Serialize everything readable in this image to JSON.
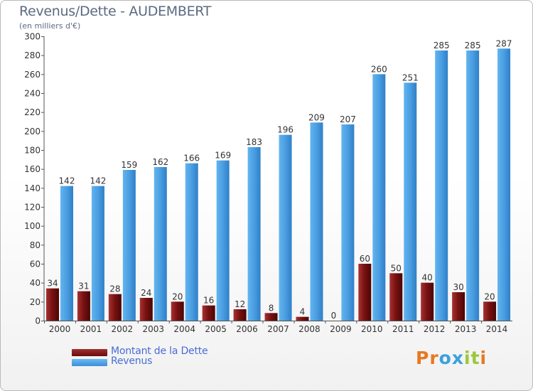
{
  "title": "Revenus/Dette - AUDEMBERT",
  "subtitle": "(en milliers d'€)",
  "logo": {
    "letters": [
      "P",
      "r",
      "o",
      "x",
      "i",
      "t",
      "i"
    ],
    "colors": [
      "#e8781e",
      "#e8781e",
      "#3aa0dc",
      "#3aa0dc",
      "#9cc73a",
      "#9cc73a",
      "#e8781e"
    ]
  },
  "legend": [
    {
      "label": "Montant de la Dette",
      "color": "#7a1212"
    },
    {
      "label": "Revenus",
      "color": "#4da0e0"
    }
  ],
  "chart_data": {
    "type": "bar",
    "title": "Revenus/Dette - AUDEMBERT",
    "subtitle": "(en milliers d'€)",
    "categories": [
      "2000",
      "2001",
      "2002",
      "2003",
      "2004",
      "2005",
      "2006",
      "2007",
      "2008",
      "2009",
      "2010",
      "2011",
      "2012",
      "2013",
      "2014"
    ],
    "series": [
      {
        "name": "Montant de la Dette",
        "color": "#7a1212",
        "values": [
          34,
          31,
          28,
          24,
          20,
          16,
          12,
          8,
          4,
          0,
          60,
          50,
          40,
          30,
          20
        ]
      },
      {
        "name": "Revenus",
        "color": "#4da0e0",
        "values": [
          142,
          142,
          159,
          162,
          166,
          169,
          183,
          196,
          209,
          207,
          260,
          251,
          285,
          285,
          287
        ]
      }
    ],
    "ylim": [
      0,
      300
    ],
    "yticks": [
      0,
      20,
      40,
      60,
      80,
      100,
      120,
      140,
      160,
      180,
      200,
      220,
      240,
      260,
      280,
      300
    ],
    "grid": false,
    "legend_position": "bottom-left"
  }
}
